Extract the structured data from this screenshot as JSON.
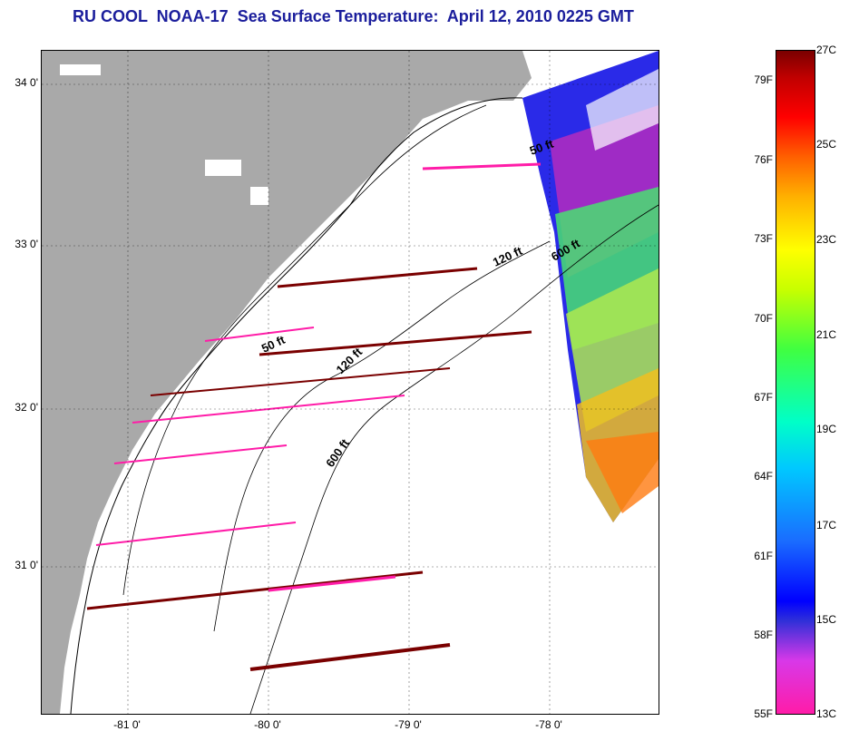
{
  "title": "RU COOL  NOAA-17  Sea Surface Temperature:  April 12, 2010 0225 GMT",
  "map": {
    "y_ticks": [
      "34 0'",
      "33 0'",
      "32 0'",
      "31 0'"
    ],
    "x_ticks": [
      "-81 0'",
      "-80 0'",
      "-79 0'",
      "-78 0'"
    ],
    "contour_labels": [
      "50 ft",
      "120 ft",
      "600 ft",
      "50 ft",
      "120 ft",
      "600 ft"
    ],
    "colors": {
      "land": "#a9a9a9",
      "ocean": "#ffffff",
      "cold": "#ff1ca8",
      "warm_streak": "#7a0000"
    }
  },
  "colorbar": {
    "fahrenheit": [
      "79F",
      "76F",
      "73F",
      "70F",
      "67F",
      "64F",
      "61F",
      "58F",
      "55F"
    ],
    "celsius": [
      "27C",
      "25C",
      "23C",
      "21C",
      "19C",
      "17C",
      "15C",
      "13C"
    ]
  }
}
